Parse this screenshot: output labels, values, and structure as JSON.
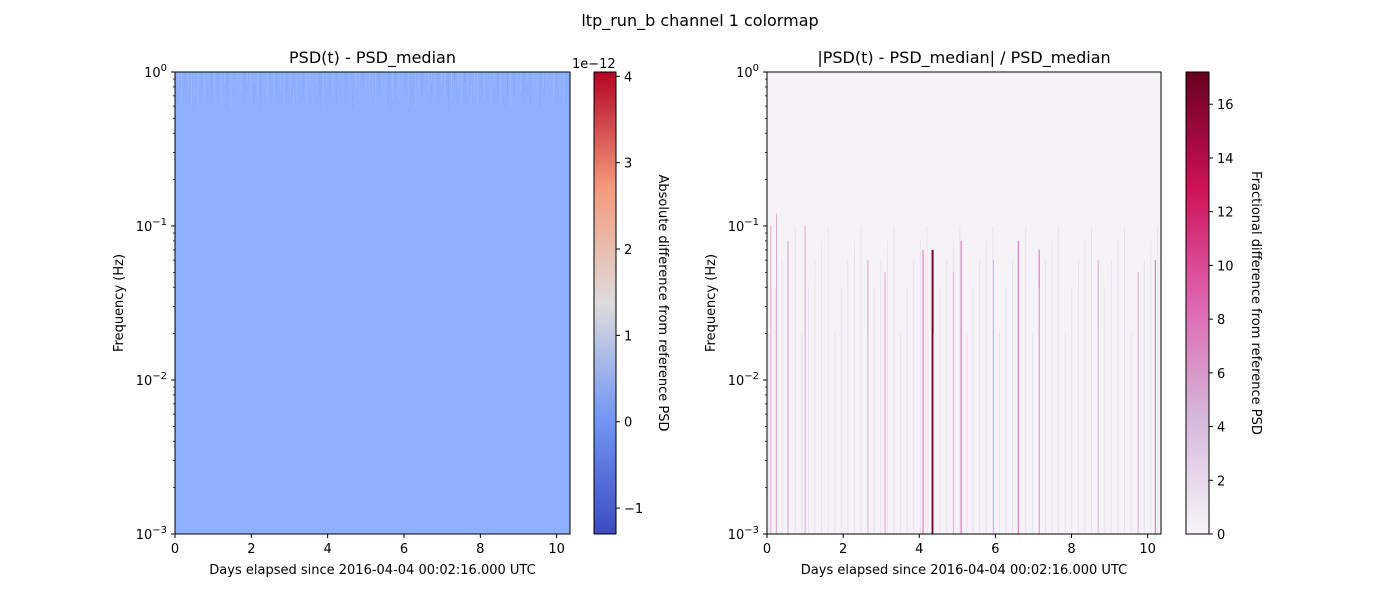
{
  "figure": {
    "suptitle": "ltp_run_b channel 1 colormap"
  },
  "chart_data": [
    {
      "type": "heatmap",
      "title": "PSD(t) - PSD_median",
      "xlabel": "Days elapsed since 2016-04-04 00:02:16.000 UTC",
      "ylabel": "Frequency (Hz)",
      "xlim": [
        0,
        10.35
      ],
      "xticks": [
        "0",
        "2",
        "4",
        "6",
        "8",
        "10"
      ],
      "yscale": "log",
      "ylim": [
        0.001,
        1
      ],
      "yticks": [
        {
          "base": "10",
          "exp": "0",
          "value": 1
        },
        {
          "base": "10",
          "exp": "−1",
          "value": 0.1
        },
        {
          "base": "10",
          "exp": "−2",
          "value": 0.01
        },
        {
          "base": "10",
          "exp": "−3",
          "value": 0.001
        }
      ],
      "colormap": "coolwarm",
      "fill_color": "#8daffe",
      "colorbar": {
        "label": "Absolute difference from reference PSD",
        "offset_text": "1e−12",
        "range": [
          -1.3,
          4.05
        ],
        "ticks": [
          "−1",
          "0",
          "1",
          "2",
          "3",
          "4"
        ],
        "tick_values": [
          -1,
          0,
          1,
          2,
          3,
          4
        ]
      }
    },
    {
      "type": "heatmap",
      "title": "|PSD(t) - PSD_median| / PSD_median",
      "xlabel": "Days elapsed since 2016-04-04 00:02:16.000 UTC",
      "ylabel": "Frequency (Hz)",
      "xlim": [
        0,
        10.35
      ],
      "xticks": [
        "0",
        "2",
        "4",
        "6",
        "8",
        "10"
      ],
      "yscale": "log",
      "ylim": [
        0.001,
        1
      ],
      "yticks": [
        {
          "base": "10",
          "exp": "0",
          "value": 1
        },
        {
          "base": "10",
          "exp": "−1",
          "value": 0.1
        },
        {
          "base": "10",
          "exp": "−2",
          "value": 0.01
        },
        {
          "base": "10",
          "exp": "−3",
          "value": 0.001
        }
      ],
      "colormap": "PuRd",
      "fill_color": "#f5f2f8",
      "colorbar": {
        "label": "Fractional difference from reference PSD",
        "range": [
          0,
          17.2
        ],
        "ticks": [
          "0",
          "2",
          "4",
          "6",
          "8",
          "10",
          "12",
          "14",
          "16"
        ],
        "tick_values": [
          0,
          2,
          4,
          6,
          8,
          10,
          12,
          14,
          16
        ]
      },
      "spikes": [
        {
          "day": 0.1,
          "fmax": 0.1,
          "value": 6
        },
        {
          "day": 0.25,
          "fmax": 0.12,
          "value": 5
        },
        {
          "day": 0.55,
          "fmax": 0.08,
          "value": 4
        },
        {
          "day": 1.0,
          "fmax": 0.1,
          "value": 5
        },
        {
          "day": 2.65,
          "fmax": 0.06,
          "value": 3
        },
        {
          "day": 3.1,
          "fmax": 0.05,
          "value": 3
        },
        {
          "day": 4.1,
          "fmax": 0.07,
          "value": 7
        },
        {
          "day": 4.35,
          "fmax": 0.07,
          "value": 17
        },
        {
          "day": 4.9,
          "fmax": 0.05,
          "value": 6
        },
        {
          "day": 5.1,
          "fmax": 0.08,
          "value": 7
        },
        {
          "day": 5.95,
          "fmax": 0.06,
          "value": 6
        },
        {
          "day": 6.6,
          "fmax": 0.08,
          "value": 8
        },
        {
          "day": 7.15,
          "fmax": 0.07,
          "value": 9
        },
        {
          "day": 8.7,
          "fmax": 0.06,
          "value": 6
        },
        {
          "day": 9.75,
          "fmax": 0.05,
          "value": 5
        },
        {
          "day": 10.2,
          "fmax": 0.06,
          "value": 7
        }
      ]
    }
  ]
}
